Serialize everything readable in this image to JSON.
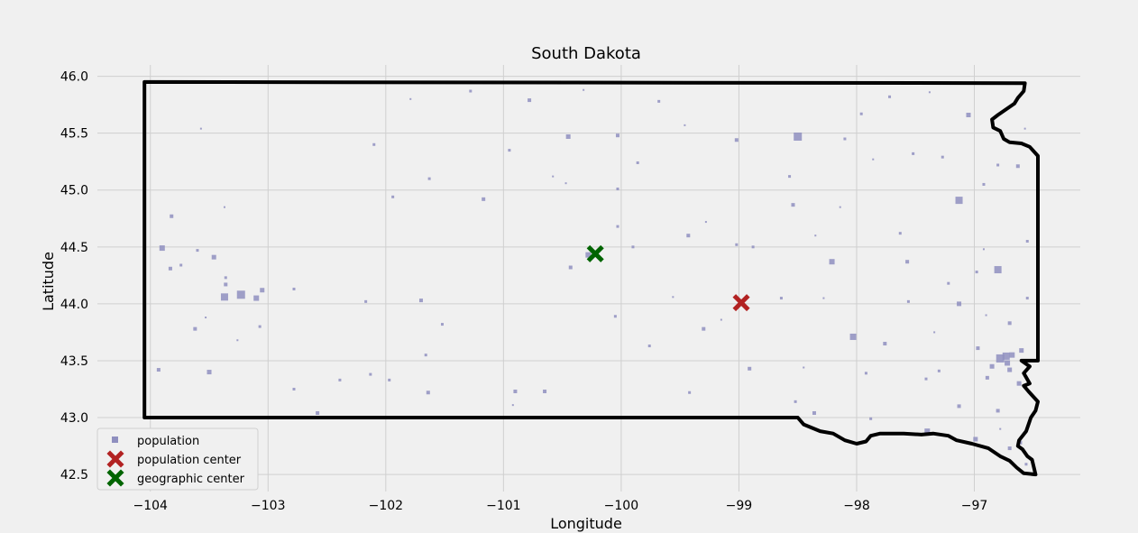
{
  "chart_data": {
    "type": "scatter",
    "title": "South Dakota",
    "xlabel": "Longitude",
    "ylabel": "Latitude",
    "xlim": [
      -104.45,
      -96.1
    ],
    "ylim": [
      42.35,
      46.1
    ],
    "x_ticks": [
      -104,
      -103,
      -102,
      -101,
      -100,
      -99,
      -98,
      -97
    ],
    "x_tick_labels": [
      "−104",
      "−103",
      "−102",
      "−101",
      "−100",
      "−99",
      "−98",
      "−97"
    ],
    "y_ticks": [
      42.5,
      43.0,
      43.5,
      44.0,
      44.5,
      45.0,
      45.5,
      46.0
    ],
    "y_tick_labels": [
      "42.5",
      "43.0",
      "43.5",
      "44.0",
      "44.5",
      "45.0",
      "45.5",
      "46.0"
    ],
    "grid": true,
    "legend_position": "bottom-left",
    "colors": {
      "population": "#8f8fbf",
      "population_center": "#b22222",
      "geographic_center": "#006400",
      "border": "#000000",
      "grid": "#cfcfcf",
      "background": "#f0f0f0"
    },
    "series": [
      {
        "name": "population",
        "marker": "square",
        "points": [
          [
            -103.23,
            44.08,
            9
          ],
          [
            -103.37,
            44.06,
            8
          ],
          [
            -103.1,
            44.05,
            6
          ],
          [
            -103.05,
            44.12,
            5
          ],
          [
            -103.9,
            44.49,
            6
          ],
          [
            -103.82,
            44.77,
            4
          ],
          [
            -103.83,
            44.31,
            4
          ],
          [
            -103.6,
            44.47,
            3
          ],
          [
            -103.46,
            44.41,
            5
          ],
          [
            -103.36,
            44.17,
            4
          ],
          [
            -103.36,
            44.23,
            3
          ],
          [
            -103.62,
            43.78,
            4
          ],
          [
            -103.5,
            43.4,
            5
          ],
          [
            -103.93,
            43.42,
            4
          ],
          [
            -103.07,
            43.8,
            3
          ],
          [
            -102.78,
            44.13,
            3
          ],
          [
            -102.78,
            43.25,
            3
          ],
          [
            -102.58,
            43.04,
            4
          ],
          [
            -102.13,
            43.38,
            3
          ],
          [
            -101.94,
            44.94,
            3
          ],
          [
            -101.7,
            44.03,
            4
          ],
          [
            -101.66,
            43.55,
            3
          ],
          [
            -101.63,
            45.1,
            3
          ],
          [
            -101.64,
            43.22,
            4
          ],
          [
            -101.52,
            43.82,
            3
          ],
          [
            -101.17,
            44.92,
            4
          ],
          [
            -100.9,
            43.23,
            4
          ],
          [
            -100.65,
            43.23,
            4
          ],
          [
            -100.78,
            45.79,
            4
          ],
          [
            -100.45,
            45.47,
            5
          ],
          [
            -100.43,
            44.32,
            4
          ],
          [
            -100.28,
            44.43,
            6
          ],
          [
            -100.03,
            45.48,
            4
          ],
          [
            -100.03,
            44.68,
            3
          ],
          [
            -100.03,
            45.01,
            3
          ],
          [
            -99.9,
            44.5,
            3
          ],
          [
            -99.43,
            44.6,
            4
          ],
          [
            -99.3,
            43.78,
            4
          ],
          [
            -99.42,
            43.22,
            3
          ],
          [
            -99.02,
            45.44,
            4
          ],
          [
            -99.02,
            44.52,
            3
          ],
          [
            -98.91,
            43.43,
            4
          ],
          [
            -98.5,
            45.47,
            9
          ],
          [
            -98.54,
            44.87,
            4
          ],
          [
            -98.21,
            44.37,
            6
          ],
          [
            -98.03,
            43.71,
            7
          ],
          [
            -98.36,
            43.04,
            4
          ],
          [
            -98.52,
            43.14,
            3
          ],
          [
            -97.92,
            43.39,
            3
          ],
          [
            -97.72,
            45.82,
            3
          ],
          [
            -97.76,
            43.65,
            4
          ],
          [
            -97.57,
            44.37,
            4
          ],
          [
            -97.52,
            45.32,
            3
          ],
          [
            -97.41,
            43.34,
            3
          ],
          [
            -97.4,
            42.88,
            6
          ],
          [
            -97.13,
            44.91,
            8
          ],
          [
            -97.13,
            44.0,
            5
          ],
          [
            -97.13,
            43.1,
            4
          ],
          [
            -97.05,
            45.66,
            5
          ],
          [
            -96.99,
            42.81,
            5
          ],
          [
            -96.98,
            44.28,
            3
          ],
          [
            -96.97,
            43.61,
            4
          ],
          [
            -96.8,
            44.3,
            8
          ],
          [
            -96.78,
            43.52,
            9
          ],
          [
            -96.73,
            43.54,
            8
          ],
          [
            -96.68,
            43.55,
            6
          ],
          [
            -96.72,
            43.48,
            6
          ],
          [
            -96.7,
            43.42,
            5
          ],
          [
            -96.85,
            43.45,
            5
          ],
          [
            -96.89,
            43.35,
            4
          ],
          [
            -96.7,
            43.83,
            4
          ],
          [
            -96.6,
            43.59,
            5
          ],
          [
            -96.62,
            43.3,
            5
          ],
          [
            -96.8,
            43.06,
            4
          ],
          [
            -96.63,
            45.21,
            4
          ],
          [
            -96.7,
            42.73,
            4
          ],
          [
            -96.61,
            42.78,
            4
          ],
          [
            -96.56,
            42.59,
            3
          ],
          [
            -97.22,
            44.18,
            3
          ],
          [
            -97.63,
            44.62,
            3
          ],
          [
            -98.1,
            45.45,
            3
          ],
          [
            -99.68,
            45.78,
            3
          ],
          [
            -100.95,
            45.35,
            3
          ],
          [
            -101.28,
            45.87,
            3
          ],
          [
            -102.39,
            43.33,
            3
          ],
          [
            -101.97,
            43.33,
            3
          ],
          [
            -100.47,
            45.06,
            2
          ],
          [
            -99.76,
            43.63,
            3
          ],
          [
            -99.15,
            43.86,
            2
          ],
          [
            -98.64,
            44.05,
            3
          ],
          [
            -98.28,
            44.05,
            2
          ],
          [
            -97.88,
            42.99,
            3
          ],
          [
            -98.45,
            43.44,
            2
          ],
          [
            -97.3,
            43.41,
            3
          ],
          [
            -97.34,
            43.75,
            2
          ],
          [
            -97.56,
            44.02,
            3
          ],
          [
            -97.86,
            45.27,
            2
          ],
          [
            -97.27,
            45.29,
            3
          ],
          [
            -96.92,
            44.48,
            2
          ],
          [
            -96.92,
            45.05,
            3
          ],
          [
            -96.55,
            44.55,
            3
          ],
          [
            -96.55,
            44.05,
            3
          ],
          [
            -96.57,
            45.54,
            2
          ],
          [
            -96.8,
            45.22,
            3
          ],
          [
            -96.78,
            42.9,
            2
          ],
          [
            -98.14,
            44.85,
            2
          ],
          [
            -98.57,
            45.12,
            3
          ],
          [
            -99.46,
            45.57,
            2
          ],
          [
            -99.86,
            45.24,
            3
          ],
          [
            -100.32,
            45.88,
            2
          ],
          [
            -100.58,
            45.12,
            2
          ],
          [
            -101.79,
            45.8,
            2
          ],
          [
            -102.1,
            45.4,
            3
          ],
          [
            -103.57,
            45.54,
            2
          ],
          [
            -103.37,
            44.85,
            2
          ],
          [
            -103.74,
            44.34,
            3
          ],
          [
            -103.26,
            43.68,
            2
          ],
          [
            -103.53,
            43.88,
            2
          ],
          [
            -102.17,
            44.02,
            3
          ],
          [
            -100.92,
            43.11,
            2
          ],
          [
            -100.05,
            43.89,
            3
          ],
          [
            -99.56,
            44.06,
            2
          ],
          [
            -99.28,
            44.72,
            2
          ],
          [
            -98.88,
            44.5,
            3
          ],
          [
            -98.35,
            44.6,
            2
          ],
          [
            -97.96,
            45.67,
            3
          ],
          [
            -97.38,
            45.86,
            2
          ],
          [
            -96.9,
            43.9,
            2
          ]
        ]
      },
      {
        "name": "population center",
        "marker": "x",
        "points": [
          [
            -98.98,
            44.01
          ]
        ]
      },
      {
        "name": "geographic center",
        "marker": "x",
        "points": [
          [
            -100.22,
            44.44
          ]
        ]
      }
    ],
    "border": [
      [
        -104.05,
        45.95
      ],
      [
        -96.57,
        45.94
      ],
      [
        -96.58,
        45.87
      ],
      [
        -96.63,
        45.81
      ],
      [
        -96.66,
        45.76
      ],
      [
        -96.8,
        45.66
      ],
      [
        -96.85,
        45.62
      ],
      [
        -96.84,
        45.55
      ],
      [
        -96.78,
        45.52
      ],
      [
        -96.75,
        45.45
      ],
      [
        -96.7,
        45.42
      ],
      [
        -96.6,
        45.41
      ],
      [
        -96.53,
        45.38
      ],
      [
        -96.46,
        45.3
      ],
      [
        -96.46,
        43.5
      ],
      [
        -96.6,
        43.5
      ],
      [
        -96.53,
        43.45
      ],
      [
        -96.58,
        43.39
      ],
      [
        -96.53,
        43.3
      ],
      [
        -96.58,
        43.28
      ],
      [
        -96.54,
        43.23
      ],
      [
        -96.46,
        43.14
      ],
      [
        -96.48,
        43.06
      ],
      [
        -96.52,
        43.0
      ],
      [
        -96.56,
        42.88
      ],
      [
        -96.62,
        42.8
      ],
      [
        -96.63,
        42.75
      ],
      [
        -96.59,
        42.72
      ],
      [
        -96.55,
        42.66
      ],
      [
        -96.51,
        42.63
      ],
      [
        -96.48,
        42.5
      ],
      [
        -96.58,
        42.51
      ],
      [
        -96.64,
        42.56
      ],
      [
        -96.7,
        42.62
      ],
      [
        -96.78,
        42.66
      ],
      [
        -96.88,
        42.73
      ],
      [
        -97.02,
        42.77
      ],
      [
        -97.15,
        42.8
      ],
      [
        -97.22,
        42.84
      ],
      [
        -97.35,
        42.86
      ],
      [
        -97.45,
        42.85
      ],
      [
        -97.6,
        42.86
      ],
      [
        -97.8,
        42.86
      ],
      [
        -97.88,
        42.84
      ],
      [
        -97.92,
        42.79
      ],
      [
        -98.0,
        42.77
      ],
      [
        -98.1,
        42.8
      ],
      [
        -98.2,
        42.86
      ],
      [
        -98.31,
        42.88
      ],
      [
        -98.45,
        42.94
      ],
      [
        -98.5,
        43.0
      ],
      [
        -104.05,
        43.0
      ],
      [
        -104.05,
        45.0
      ],
      [
        -104.05,
        45.95
      ]
    ]
  }
}
